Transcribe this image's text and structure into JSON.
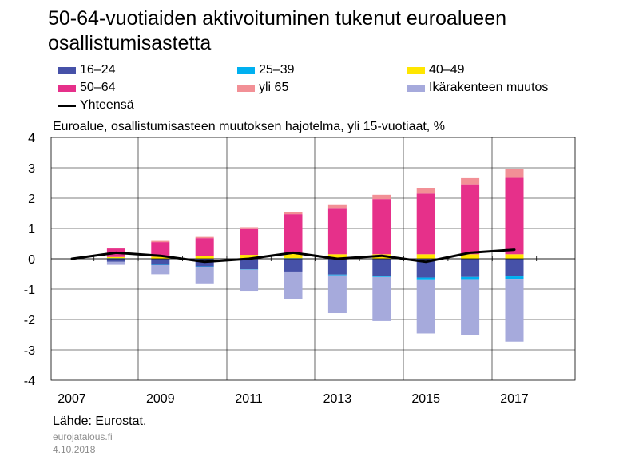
{
  "header": {
    "title": "50-64-vuotiaiden aktivoituminen tukenut euroalueen osallistumisastetta"
  },
  "footer": {
    "source": "Lähde: Eurostat.",
    "site": "eurojatalous.fi",
    "date": "4.10.2018"
  },
  "colors": {
    "16–24": "#4651a8",
    "25–39": "#00b0f0",
    "40–49": "#ffe600",
    "50–64": "#e6308a",
    "yli 65": "#f29096",
    "Ikärakenteen muutos": "#a6aadc",
    "Yhteensä": "#000000",
    "grid": "#000000"
  },
  "chart_data": {
    "type": "bar",
    "subtitle": "Euroalue, osallistumisasteen muutoksen hajotelma, yli 15-vuotiaat, %",
    "stacked": true,
    "categories": [
      "2007",
      "2008",
      "2009",
      "2010",
      "2011",
      "2012",
      "2013",
      "2014",
      "2015",
      "2016",
      "2017"
    ],
    "x_tick_labels": [
      "2007",
      "2009",
      "2011",
      "2013",
      "2015",
      "2017"
    ],
    "ylim": [
      -4,
      4
    ],
    "y_ticks": [
      4,
      3,
      2,
      1,
      0,
      -1,
      -2,
      -3,
      -4
    ],
    "grid": true,
    "legend_position": "top",
    "series": [
      {
        "name": "16–24",
        "type": "bar",
        "values": [
          0,
          -0.1,
          -0.2,
          -0.25,
          -0.35,
          -0.42,
          -0.52,
          -0.57,
          -0.62,
          -0.6,
          -0.58
        ]
      },
      {
        "name": "25–39",
        "type": "bar",
        "values": [
          0,
          0.02,
          -0.01,
          -0.01,
          -0.01,
          0.02,
          -0.02,
          -0.03,
          -0.06,
          -0.07,
          -0.08
        ]
      },
      {
        "name": "40–49",
        "type": "bar",
        "values": [
          0,
          0.04,
          0.07,
          0.1,
          0.13,
          0.15,
          0.15,
          0.15,
          0.15,
          0.15,
          0.15
        ]
      },
      {
        "name": "50–64",
        "type": "bar",
        "values": [
          0,
          0.28,
          0.48,
          0.58,
          0.85,
          1.3,
          1.5,
          1.82,
          2.0,
          2.28,
          2.52
        ]
      },
      {
        "name": "yli 65",
        "type": "bar",
        "values": [
          0,
          0.02,
          0.04,
          0.04,
          0.06,
          0.08,
          0.12,
          0.14,
          0.19,
          0.23,
          0.3
        ]
      },
      {
        "name": "Ikärakenteen muutos",
        "type": "bar",
        "values": [
          0,
          -0.1,
          -0.3,
          -0.55,
          -0.72,
          -0.92,
          -1.25,
          -1.45,
          -1.78,
          -1.84,
          -2.07
        ]
      },
      {
        "name": "Yhteensä",
        "type": "line",
        "values": [
          0,
          0.2,
          0.1,
          -0.1,
          0,
          0.2,
          0,
          0.1,
          -0.1,
          0.2,
          0.3
        ]
      }
    ]
  }
}
